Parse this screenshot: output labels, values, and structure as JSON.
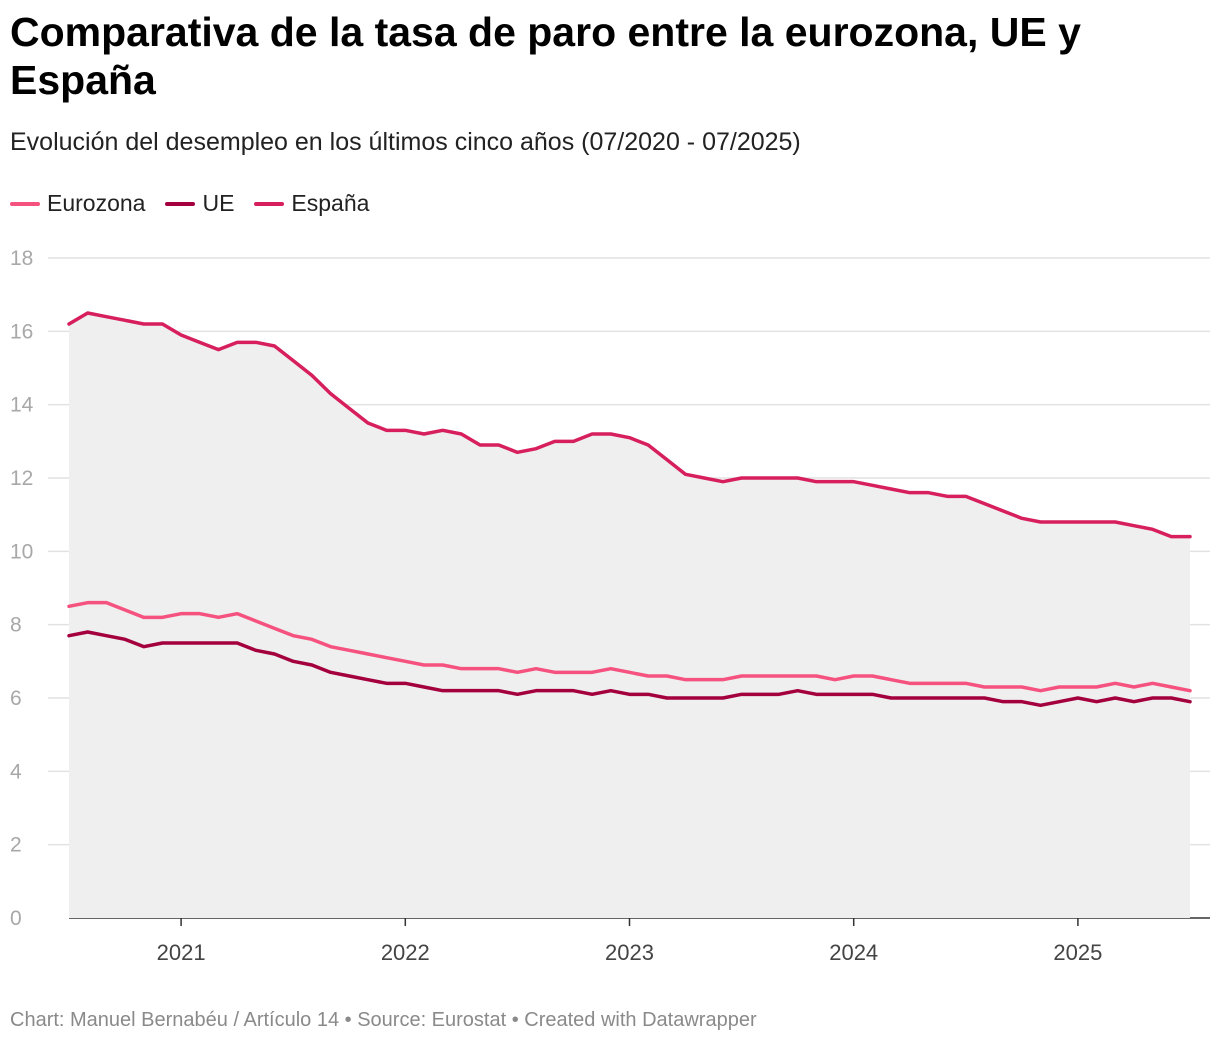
{
  "header": {
    "title": "Comparativa de la tasa de paro entre la eurozona, UE y España",
    "subtitle": "Evolución del desempleo en los últimos cinco años (07/2020 - 07/2025)"
  },
  "legend": [
    {
      "label": "Eurozona",
      "color": "#f5527f"
    },
    {
      "label": "UE",
      "color": "#a4003d"
    },
    {
      "label": "España",
      "color": "#d61f5c"
    }
  ],
  "footer": {
    "text": "Chart: Manuel Bernabéu / Artículo 14 • Source: Eurostat • Created with Datawrapper"
  },
  "chart_data": {
    "type": "line",
    "title": "Comparativa de la tasa de paro entre la eurozona, UE y España",
    "xlabel": "",
    "ylabel": "",
    "ylim": [
      0,
      18
    ],
    "y_ticks": [
      "0",
      "2",
      "4",
      "6",
      "8",
      "10",
      "12",
      "14",
      "16",
      "18"
    ],
    "x_ticks": [
      {
        "label": "2021",
        "month_index": 6
      },
      {
        "label": "2022",
        "month_index": 18
      },
      {
        "label": "2023",
        "month_index": 30
      },
      {
        "label": "2024",
        "month_index": 42
      },
      {
        "label": "2025",
        "month_index": 54
      }
    ],
    "x_start": "2020-07",
    "x_end": "2025-07",
    "grid": true,
    "area_under": "España",
    "series": [
      {
        "name": "Eurozona",
        "color": "#f5527f",
        "values": [
          8.5,
          8.6,
          8.6,
          8.4,
          8.2,
          8.2,
          8.3,
          8.3,
          8.2,
          8.3,
          8.1,
          7.9,
          7.7,
          7.6,
          7.4,
          7.3,
          7.2,
          7.1,
          7.0,
          6.9,
          6.9,
          6.8,
          6.8,
          6.8,
          6.7,
          6.8,
          6.7,
          6.7,
          6.7,
          6.8,
          6.7,
          6.6,
          6.6,
          6.5,
          6.5,
          6.5,
          6.6,
          6.6,
          6.6,
          6.6,
          6.6,
          6.5,
          6.6,
          6.6,
          6.5,
          6.4,
          6.4,
          6.4,
          6.4,
          6.3,
          6.3,
          6.3,
          6.2,
          6.3,
          6.3,
          6.3,
          6.4,
          6.3,
          6.4,
          6.3,
          6.2
        ]
      },
      {
        "name": "UE",
        "color": "#a4003d",
        "values": [
          7.7,
          7.8,
          7.7,
          7.6,
          7.4,
          7.5,
          7.5,
          7.5,
          7.5,
          7.5,
          7.3,
          7.2,
          7.0,
          6.9,
          6.7,
          6.6,
          6.5,
          6.4,
          6.4,
          6.3,
          6.2,
          6.2,
          6.2,
          6.2,
          6.1,
          6.2,
          6.2,
          6.2,
          6.1,
          6.2,
          6.1,
          6.1,
          6.0,
          6.0,
          6.0,
          6.0,
          6.1,
          6.1,
          6.1,
          6.2,
          6.1,
          6.1,
          6.1,
          6.1,
          6.0,
          6.0,
          6.0,
          6.0,
          6.0,
          6.0,
          5.9,
          5.9,
          5.8,
          5.9,
          6.0,
          5.9,
          6.0,
          5.9,
          6.0,
          6.0,
          5.9
        ]
      },
      {
        "name": "España",
        "color": "#d61f5c",
        "values": [
          16.2,
          16.5,
          16.4,
          16.3,
          16.2,
          16.2,
          15.9,
          15.7,
          15.5,
          15.7,
          15.7,
          15.6,
          15.2,
          14.8,
          14.3,
          13.9,
          13.5,
          13.3,
          13.3,
          13.2,
          13.3,
          13.2,
          12.9,
          12.9,
          12.7,
          12.8,
          13.0,
          13.0,
          13.2,
          13.2,
          13.1,
          12.9,
          12.5,
          12.1,
          12.0,
          11.9,
          12.0,
          12.0,
          12.0,
          12.0,
          11.9,
          11.9,
          11.9,
          11.8,
          11.7,
          11.6,
          11.6,
          11.5,
          11.5,
          11.3,
          11.1,
          10.9,
          10.8,
          10.8,
          10.8,
          10.8,
          10.8,
          10.7,
          10.6,
          10.4,
          10.4
        ]
      }
    ]
  }
}
